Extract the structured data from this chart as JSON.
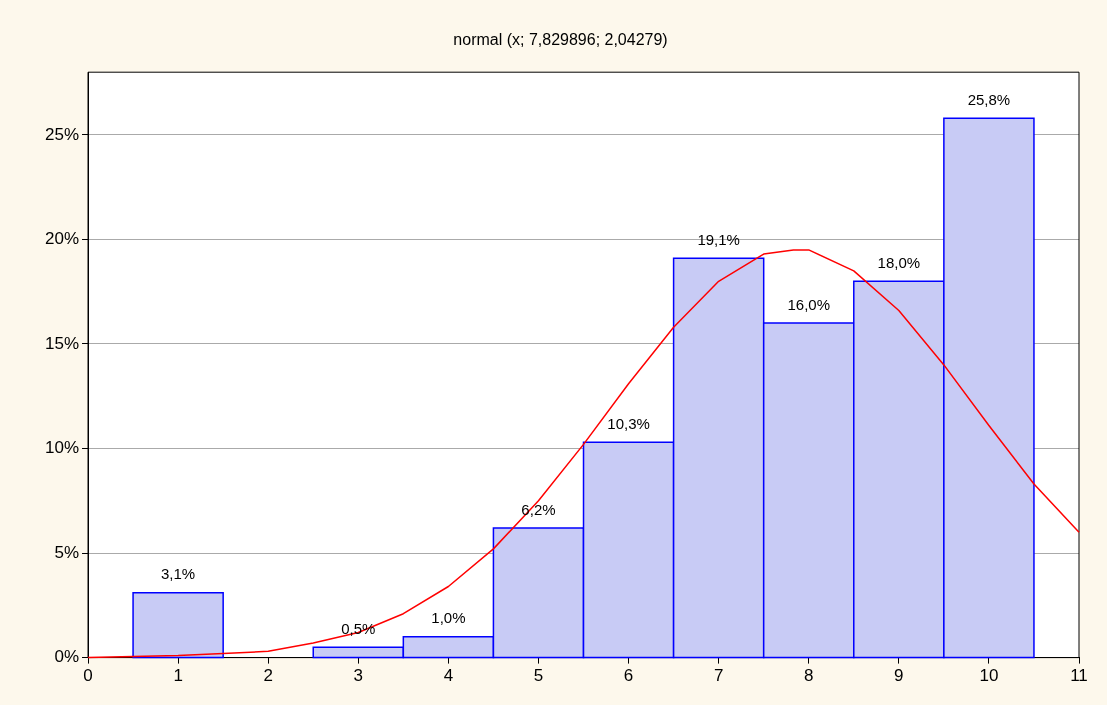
{
  "chart_data": {
    "type": "histogram",
    "title": "normal (x; 7,829896; 2,04279)",
    "bins": [
      0.5,
      1.5,
      2.5,
      3.5,
      4.5,
      5.5,
      6.5,
      7.5,
      8.5,
      9.5,
      10.5
    ],
    "values": [
      3.1,
      0,
      0.5,
      1.0,
      6.2,
      10.3,
      19.1,
      16.0,
      18.0,
      25.8
    ],
    "value_labels": [
      "3,1%",
      null,
      "0,5%",
      "1,0%",
      "6,2%",
      "10,3%",
      "19,1%",
      "16,0%",
      "18,0%",
      "25,8%"
    ],
    "color": "#0000ff",
    "series": [
      {
        "type": "line",
        "color": "#ff0000",
        "x": [
          0,
          1,
          1.5,
          2,
          2.5,
          3,
          3.5,
          4,
          4.5,
          5,
          5.5,
          6,
          6.5,
          7,
          7.5,
          7.83,
          8,
          8.5,
          9,
          9.5,
          10,
          10.5,
          11
        ],
        "values": [
          0.0,
          0.1,
          0.2,
          0.3,
          0.7,
          1.2,
          2.1,
          3.4,
          5.2,
          7.5,
          10.2,
          13.1,
          15.8,
          18.0,
          19.3,
          19.5,
          19.5,
          18.5,
          16.6,
          14.0,
          11.1,
          8.3,
          6.0
        ]
      }
    ],
    "xlim": [
      0,
      11
    ],
    "xticks": [
      0,
      1,
      2,
      3,
      4,
      5,
      6,
      7,
      8,
      9,
      10,
      11
    ],
    "ylim": [
      0,
      28
    ],
    "yticks": [
      {
        "value": 0,
        "label": "0%"
      },
      {
        "value": 5,
        "label": "5%"
      },
      {
        "value": 10,
        "label": "10%"
      },
      {
        "value": 15,
        "label": "15%"
      },
      {
        "value": 20,
        "label": "20%"
      },
      {
        "value": 25,
        "label": "25%"
      }
    ],
    "grid": "y",
    "legend": false,
    "marker": "none",
    "line_style": "solid"
  }
}
